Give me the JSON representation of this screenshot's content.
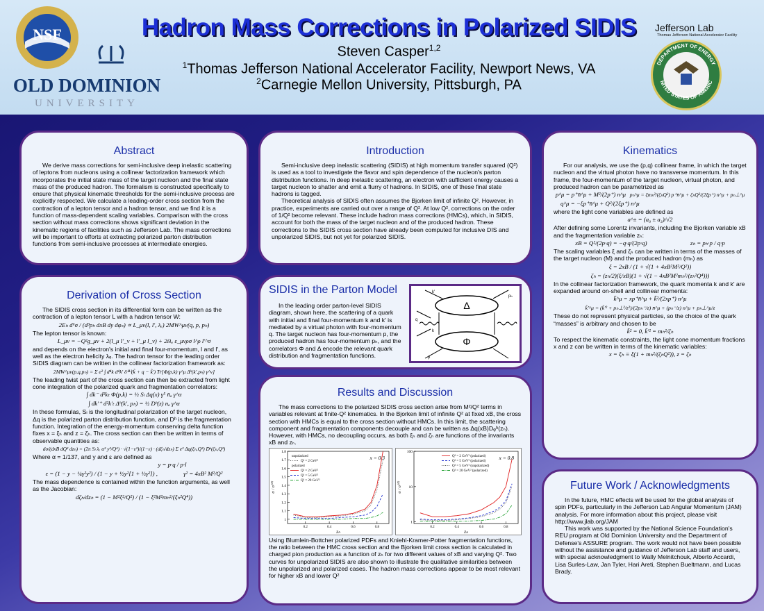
{
  "header": {
    "title": "Hadron Mass Corrections in Polarized SIDIS",
    "author": "Steven Casper",
    "author_marks": "1,2",
    "affiliations": [
      {
        "mark": "1",
        "text": "Thomas Jefferson National Accelerator Facility, Newport News, VA"
      },
      {
        "mark": "2",
        "text": "Carnegie Mellon University, Pittsburgh, PA"
      }
    ],
    "logos": {
      "nsf": "NSF",
      "odu": "OLD DOMINION",
      "odu_sub": "UNIVERSITY",
      "jlab": "Jefferson Lab",
      "jlab_sub": "Thomas Jefferson National Accelerator Facility",
      "doe_top": "DEPARTMENT OF ENERGY",
      "doe_bottom": "UNITED STATES OF AMERICA"
    }
  },
  "abstract": {
    "heading": "Abstract",
    "body": [
      "We derive mass corrections for semi-inclusive deep inelastic scattering of leptons from nucleons using a collinear factorization framework which incorporates the initial state mass of the target nucleon and the final state mass of the produced hadron. The formalism is constructed specifically to ensure that physical kinematic thresholds for the semi-inclusive process are explicitly respected. We calculate a leading-order cross section from the contraction of a lepton tensor and a hadron tensor, and we find it is a function of mass-dependent scaling variables.  Comparison with the cross section without mass corrections shows significant deviation in the kinematic regions of facilities such as Jefferson Lab. The mass corrections will be important to efforts at extracting polarized parton distribution functions from semi-inclusive processes at intermediate energies."
    ]
  },
  "introduction": {
    "heading": "Introduction",
    "body": [
      "Semi-inclusive deep inelastic scattering (SIDIS) at high momentum transfer squared (Q²) is used as a tool to investigate the flavor and spin dependence of the nucleon's parton distribution functions. In deep inelastic scattering, an electron with sufficient energy causes a target nucleon to shatter and emit a flurry of hadrons. In SIDIS, one of these final state hadrons is tagged.",
      "Theoretical analysis of SIDIS often assumes the Bjorken limit of infinite Q². However, in practice, experiments are carried out over a range of Q². At low Q², corrections on the order of 1/Q² become relevant. These include hadron mass corrections (HMCs), which, in SIDIS, account for both the mass of the target nucleon and  of the produced hadron. These corrections to the SIDIS cross section have already been computed for inclusive DIS and unpolarized SIDIS, but not yet for polarized SIDIS."
    ]
  },
  "parton_model": {
    "heading": "SIDIS in the Parton Model",
    "body": [
      "In the leading order parton-level SIDIS diagram, shown here, the scattering of a quark with initial and final four-momentum k and k' is mediated by a virtual photon with four-momentum q. The target nucleon has four-momentum p, the produced hadron has four-momentum pₕ, and the correlators Φ and Δ encode the relevant quark distribution and fragmentation functions."
    ],
    "diagram": {
      "upper": "Δ",
      "lower": "Φ",
      "labels": [
        "k′",
        "q",
        "p",
        "pₕ",
        "k"
      ]
    }
  },
  "results": {
    "heading": "Results and Discussion",
    "body": [
      "The mass corrections to the polarized SIDIS cross section arise from M²/Q² terms in variables relevant at finite-Q² kinematics. In the Bjorken limit of infinite Q² at fixed xB, the cross section with HMCs is equal to the cross section without HMCs. In this limit, the scattering component and fragmentation components decouple and can be written as Δq(xB)Dᵩʰ(zₕ). However, with HMCs, no decoupling occurs, as both ξₕ and ζₕ are functions of the invariants xB and zₕ.",
      "Using Blumlein-Bottcher polarized PDFs and Kniehl-Kramer-Potter fragmentation functions, the ratio between the HMC cross section and the Bjorken limit cross section is calculated in charged pion production as a function of zₕ for two different values of xB and varying Q². Two curves for unpolarized SIDIS are also shown to illustrate the qualitative similarities between the unpolarized and polarized cases. The hadron mass corrections appear to be most relevant for higher xB and lower Q²"
    ]
  },
  "plots": [
    {
      "annotation": "x = 0.3",
      "xlabel": "zₕ",
      "ylabel": "σ / σ⁽⁰⁾",
      "x": [
        0.1,
        0.2,
        0.3,
        0.4,
        0.5,
        0.6,
        0.7,
        0.75,
        0.8,
        0.85
      ],
      "xlim": [
        0.05,
        0.9
      ],
      "xticks": [
        0.2,
        0.4,
        0.6,
        0.8
      ],
      "ylim": [
        0.95,
        1.8
      ],
      "yticks": [
        1,
        1.1,
        1.2,
        1.3,
        1.4,
        1.5,
        1.6,
        1.7,
        1.8
      ],
      "groups": [
        {
          "name": "unpolarized",
          "series": [
            {
              "name": "Q² = 2 GeV²",
              "color": "#555555",
              "dash": "1 1.5",
              "values": [
                1.05,
                1.02,
                1.02,
                1.03,
                1.04,
                1.06,
                1.1,
                1.17,
                1.35,
                1.7
              ]
            }
          ]
        },
        {
          "name": "polarized",
          "series": [
            {
              "name": "Q² = 2 GeV²",
              "color": "#e02020",
              "dash": "",
              "values": [
                1.06,
                1.03,
                1.03,
                1.04,
                1.05,
                1.07,
                1.12,
                1.2,
                1.4,
                1.8
              ]
            },
            {
              "name": "Q² = 5 GeV²",
              "color": "#2030d0",
              "dash": "3 2",
              "values": [
                1.02,
                1.01,
                1.01,
                1.01,
                1.02,
                1.03,
                1.05,
                1.08,
                1.15,
                1.3
              ]
            },
            {
              "name": "Q² = 20 GeV²",
              "color": "#20a030",
              "dash": "4 1.5 1 1.5",
              "values": [
                1.0,
                1.0,
                1.0,
                1.0,
                1.0,
                1.01,
                1.01,
                1.02,
                1.04,
                1.08
              ]
            }
          ]
        }
      ]
    },
    {
      "annotation": "x = 0.8",
      "xlabel": "zₕ",
      "ylabel": "σ / σ⁽⁰⁾",
      "log_y": true,
      "x": [
        0.1,
        0.2,
        0.3,
        0.4,
        0.5,
        0.6,
        0.7,
        0.75,
        0.8,
        0.85
      ],
      "xlim": [
        0.05,
        0.9
      ],
      "xticks": [
        0.2,
        0.4,
        0.6,
        0.8
      ],
      "ylim": [
        0.9,
        100
      ],
      "yticks": [
        1,
        10,
        100
      ],
      "groups": [
        {
          "series": [
            {
              "name": "Q² = 2 GeV² (polarized)",
              "color": "#e02020",
              "dash": "",
              "values": [
                1.8,
                1.4,
                1.4,
                1.5,
                1.7,
                2.2,
                3.5,
                5,
                10,
                60
              ]
            },
            {
              "name": "Q² = 5 GeV² (polarized)",
              "color": "#2030d0",
              "dash": "3 2",
              "values": [
                1.2,
                1.15,
                1.15,
                1.2,
                1.3,
                1.5,
                2,
                2.6,
                4,
                12
              ]
            },
            {
              "name": "Q² = 5 GeV² (unpolarized)",
              "color": "#555555",
              "dash": "1 1.5",
              "values": [
                1.15,
                1.1,
                1.1,
                1.15,
                1.25,
                1.4,
                1.8,
                2.3,
                3.5,
                10
              ]
            },
            {
              "name": "Q² = 20 GeV² (polarized)",
              "color": "#20a030",
              "dash": "4 1.5 1 1.5",
              "values": [
                1.05,
                1.03,
                1.03,
                1.04,
                1.06,
                1.1,
                1.2,
                1.35,
                1.7,
                3
              ]
            }
          ]
        }
      ]
    }
  ],
  "derivation": {
    "heading": "Derivation of Cross Section",
    "body": [
      "The SIDIS cross section in its differential form can be written as the contraction of a lepton tensor L with a hadron tensor W:",
      "2Eₕ d⁶σ / (d³pₕ dxB dy dφₛ) ∝ L_μν(l, l′, λₑ) 2MW^μν(q, p, pₕ)",
      "The lepton tensor is known:",
      "L_μν = −Q²g_μν + 2(l_μ l′_ν + l′_μ l_ν) + 2iλₑ ε_μνρσ l^ρ l′^σ",
      "and depends on the electron's initial and final four-momentum, l and l', as well as the electron helicity λₑ.  The hadron tensor for the leading order SIDIS diagram can be written in the collinear factorization framework as:",
      "2MW^μν(p,q,pₕ) = Σ e² ∫ d⁴k d⁴k′ δ⁽⁴⁾(k̃ + q − k̃′) Tr[Φ(p,k) γ^μ Δʰ(k′,pₕ) γ^ν]",
      "The leading twist part of the cross section can then be extracted from light cone integration of the polarized quark and fragmentation correlators:",
      "∫ dk⁻ d²kₜ Φ(p,k) = ½ Sₗ Δq(x) γ⁵ n̄ₐ γ^α",
      "∫ dk′⁺ d²k′ₜ Δʰ(k′, pₕ) = ½ Dʰ(z) nₐ γ^α",
      "In these formulas, Sₗ is the longitudinal polarization of the target nucleon, Δq is the polarized parton distribution function, and Dʰ is the fragmentation function.  Integration of the energy-momentum conserving delta function fixes x =  ξₕ and z = ζₕ. The cross section can then be written in terms of observable quantities as:",
      "dσ/(dxB dQ² dzₕ) = (2π Sₗ λₑ α² y²/Q⁴) · √(1−ε²)/(1−ε) · (dζₕ/dzₕ) Σ e² Δq(ξₕ,Q²) Dʰ(ζₕ,Q²)",
      "Where α = 1/137, and y and ε are defined as",
      "y = p·q / p·l",
      "ε = (1 − y − ¼γ²y²) / (1 − y + ½y²[1 + ½γ²]) ,",
      "γ² = 4xB² M²/Q²",
      "The mass dependence is contained within the function arguments, as well as the Jacobian:",
      "dζₕ/dzₕ = (1 − M²ξ²/Q²) / (1 − ξ²M²mₕ²/(ξₕ²Q⁴))"
    ]
  },
  "kinematics": {
    "heading": "Kinematics",
    "body": [
      "For our analysis, we use the (p,q) collinear frame, in which the target nucleon and the virtual photon have no transverse momentum. In this frame, the four-momentum of the target nucleon, virtual photon, and produced hadron can be parametrized as",
      "p^μ = p⁺n̄^μ + M²/(2p⁺) n^μ",
      "pₕ^μ = ξmₕ²/(ζₕQ²) p⁺n̄^μ + ζₕQ²/(2ξp⁺) n^μ + pₕ⊥^μ",
      "q^μ = −ξp⁺n̄^μ + Q²/(2ξp⁺) n^μ",
      "where the light cone variables are defined as",
      "a^± = (a₀ ± a₃)/√2",
      "After defining some Lorentz invariants, including the Bjorken variable xB and the fragmentation variable zₕ:",
      "xB = Q²/(2p·q) = −q·q/(2p·q)",
      "zₕ = pₕ·p / q·p",
      "The scaling variables ξ and ζₕ can be written in terms of the masses of the target nucleon (M) and the produced hadron (mₕ) as",
      "ξ = 2xB / (1 + √(1 + 4xB²M²/Q²))",
      "ζₕ = (zₕ/2)(ξ/xB)(1 + √(1 − 4xB²M²mₕ²/(zₕ²Q⁴)))",
      "In the collinear factorization framework, the quark momenta k and k' are expanded around on-shell and collinear momenta:",
      "k̃^μ = xp⁺n̄^μ + k̃²/(2xp⁺) n^μ",
      "k̃′^μ = (k̃′² + pₕ⊥²/z²)/(2pₕ⁻/z) n̄^μ + (pₕ⁻/z) n^μ + pₕ⊥^μ/z",
      "These do not represent physical particles, so the choice of the quark “masses” is arbitrary and chosen to be",
      "k̃² = 0, k̃′² = mₕ²/ζₕ",
      "To respect the kinematic constraints, the light cone momentum fractions x and z can be written in terms of the kinematic variables:",
      "x = ξₕ ≡ ξ(1 + mₕ²/(ζₕQ²)), z = ζₕ"
    ]
  },
  "future": {
    "heading": "Future Work / Acknowledgments",
    "body": [
      "In the future, HMC effects will be used for the global analysis of spin PDFs, particularly in the Jefferson Lab Angular Momentum (JAM) analysis. For more information about this project, please visit http://www.jlab.org/JAM",
      "This work was supported by the National Science Foundation's REU program at Old Dominion University and the Department of Defense's ASSURE program. The work would not have been possible without the assistance and guidance of Jefferson Lab staff and users, with special acknowledgment to Wally Melnitchouk, Alberto Accardi, Lisa Surles-Law, Jan Tyler, Hari Areti, Stephen Bueltmann, and Lucas Brady."
    ]
  }
}
